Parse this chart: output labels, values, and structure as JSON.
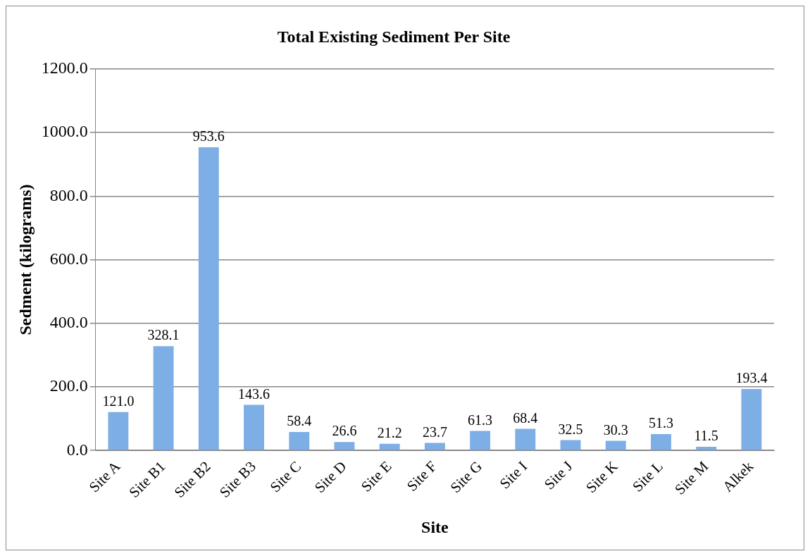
{
  "chart_data": {
    "type": "bar",
    "title": "Total Existing Sediment Per Site",
    "xlabel": "Site",
    "ylabel": "Sedment (kilograms)",
    "categories": [
      "Site A",
      "Site B1",
      "Site B2",
      "Site B3",
      "Site C",
      "Site D",
      "Site E",
      "Site F",
      "Site G",
      "Site I",
      "Site J",
      "Site K",
      "Site L",
      "Site M",
      "Alkek"
    ],
    "values": [
      121.0,
      328.1,
      953.6,
      143.6,
      58.4,
      26.6,
      21.2,
      23.7,
      61.3,
      68.4,
      32.5,
      30.3,
      51.3,
      11.5,
      193.4
    ],
    "value_labels": [
      "121.0",
      "328.1",
      "953.6",
      "143.6",
      "58.4",
      "26.6",
      "21.2",
      "23.7",
      "61.3",
      "68.4",
      "32.5",
      "30.3",
      "51.3",
      "11.5",
      "193.4"
    ],
    "color": "#7eaee6",
    "ylim": [
      0,
      1200
    ],
    "yticks": [
      {
        "value": 0,
        "label": "0.0"
      },
      {
        "value": 200,
        "label": "200.0"
      },
      {
        "value": 400,
        "label": "400.0"
      },
      {
        "value": 600,
        "label": "600.0"
      },
      {
        "value": 800,
        "label": "800.0"
      },
      {
        "value": 1000,
        "label": "1000.0"
      },
      {
        "value": 1200,
        "label": "1200.0"
      }
    ],
    "grid": "y",
    "legend": false
  }
}
